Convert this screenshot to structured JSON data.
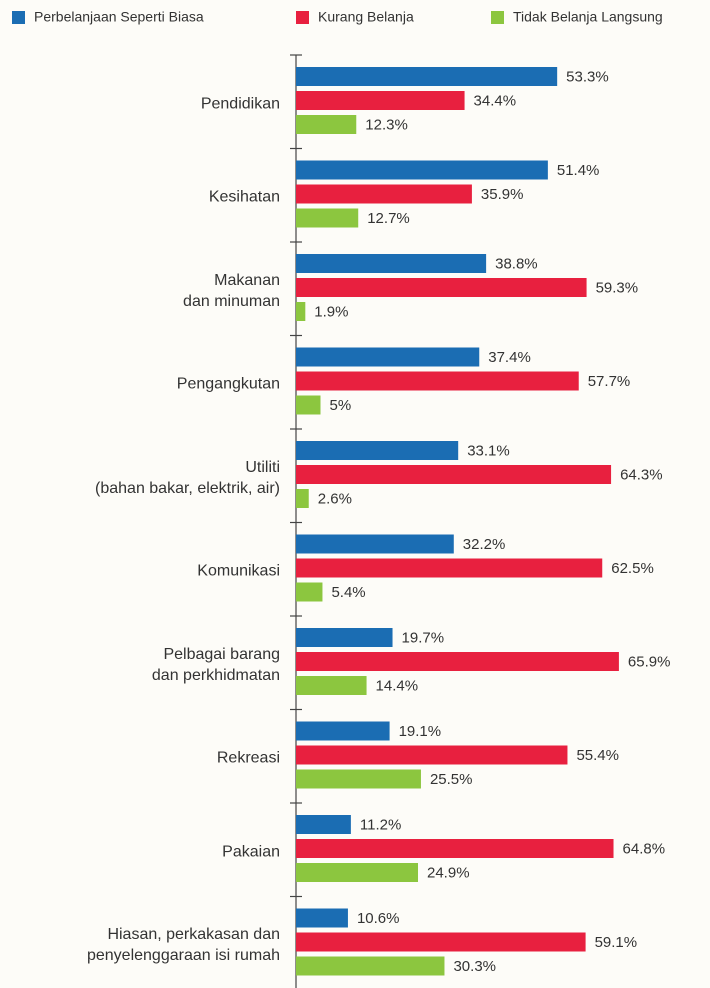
{
  "chart_data": {
    "type": "bar",
    "orientation": "horizontal",
    "categories": [
      "Pendidikan",
      "Kesihatan",
      "Makanan\ndan minuman",
      "Pengangkutan",
      "Utiliti\n(bahan bakar, elektrik, air)",
      "Komunikasi",
      "Pelbagai barang\ndan perkhidmatan",
      "Rekreasi",
      "Pakaian",
      "Hiasan, perkakasan dan\npenyelenggaraan isi rumah"
    ],
    "series": [
      {
        "name": "Perbelanjaan Seperti Biasa",
        "color": "#1b6db3",
        "values": [
          53.3,
          51.4,
          38.8,
          37.4,
          33.1,
          32.2,
          19.7,
          19.1,
          11.2,
          10.6
        ],
        "value_labels": [
          "53.3%",
          "51.4%",
          "38.8%",
          "37.4%",
          "33.1%",
          "32.2%",
          "19.7%",
          "19.1%",
          "11.2%",
          "10.6%"
        ]
      },
      {
        "name": "Kurang Belanja",
        "color": "#e8203f",
        "values": [
          34.4,
          35.9,
          59.3,
          57.7,
          64.3,
          62.5,
          65.9,
          55.4,
          64.8,
          59.1
        ],
        "value_labels": [
          "34.4%",
          "35.9%",
          "59.3%",
          "57.7%",
          "64.3%",
          "62.5%",
          "65.9%",
          "55.4%",
          "64.8%",
          "59.1%"
        ]
      },
      {
        "name": "Tidak Belanja Langsung",
        "color": "#8cc63f",
        "values": [
          12.3,
          12.7,
          1.9,
          5,
          2.6,
          5.4,
          14.4,
          25.5,
          24.9,
          30.3
        ],
        "value_labels": [
          "12.3%",
          "12.7%",
          "1.9%",
          "5%",
          "2.6%",
          "5.4%",
          "14.4%",
          "25.5%",
          "24.9%",
          "30.3%"
        ]
      }
    ]
  }
}
